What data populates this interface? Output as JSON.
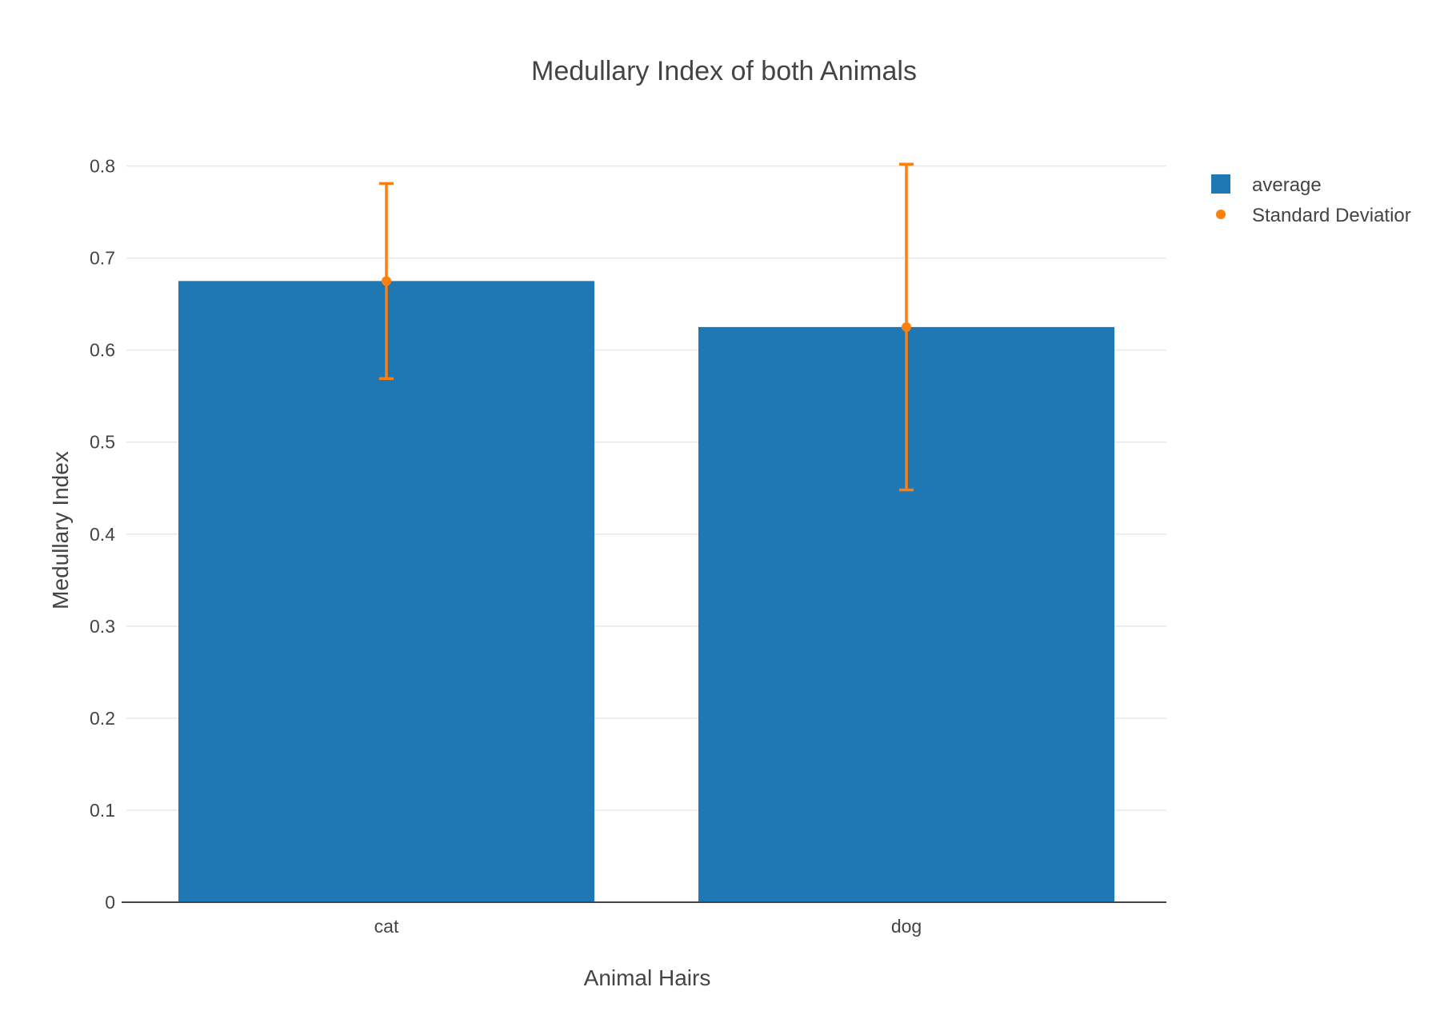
{
  "chart_data": {
    "type": "bar",
    "title": "Medullary Index of both Animals",
    "xlabel": "Animal Hairs",
    "ylabel": "Medullary Index",
    "categories": [
      "cat",
      "dog"
    ],
    "ylim": [
      0,
      0.85
    ],
    "yticks": [
      0,
      0.1,
      0.2,
      0.3,
      0.4,
      0.5,
      0.6,
      0.7,
      0.8
    ],
    "ytick_labels": [
      "0",
      "0.1",
      "0.2",
      "0.3",
      "0.4",
      "0.5",
      "0.6",
      "0.7",
      "0.8"
    ],
    "grid": true,
    "legend_position": "top-right",
    "series": [
      {
        "name": "average",
        "type": "bar",
        "values": [
          0.675,
          0.625
        ],
        "color": "#1f77b4"
      },
      {
        "name": "Standard Deviatior",
        "type": "scatter",
        "values": [
          0.675,
          0.625
        ],
        "error": [
          0.106,
          0.177
        ],
        "color": "#ff7f0e"
      }
    ]
  }
}
